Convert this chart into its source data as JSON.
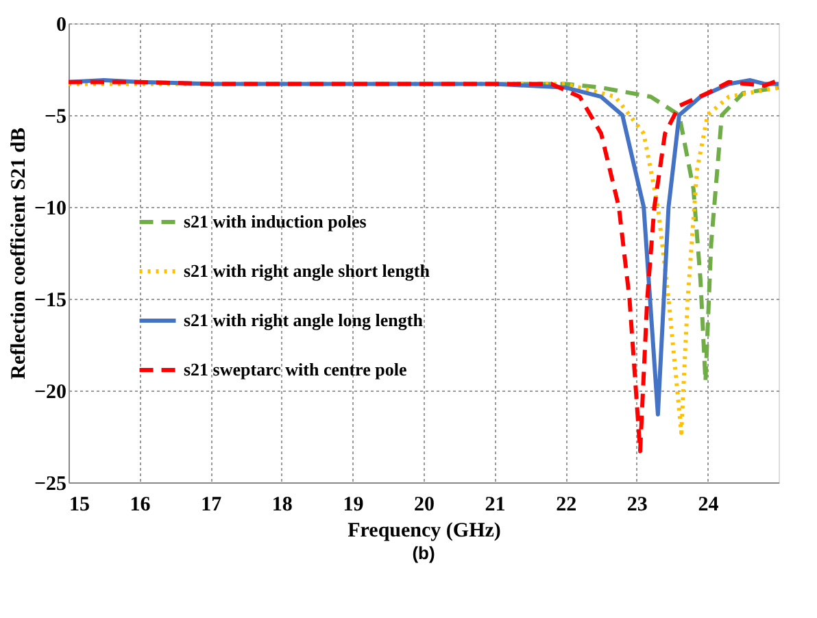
{
  "chart_data": {
    "type": "line",
    "xlabel": "Frequency (GHz)",
    "ylabel": "Reflection coefficient S21 dB",
    "xlim": [
      15,
      25
    ],
    "ylim": [
      -25,
      0
    ],
    "xticks": [
      15,
      16,
      17,
      18,
      19,
      20,
      21,
      22,
      23,
      24
    ],
    "yticks": [
      0,
      -5,
      -10,
      -15,
      -20,
      -25
    ],
    "grid": true,
    "legend": "left",
    "annotations": [
      "(b)"
    ],
    "series": [
      {
        "name": "s21 with induction poles",
        "color": "#70ad47",
        "line_style": "dashed",
        "x": [
          21,
          22,
          22.5,
          23.2,
          23.6,
          23.8,
          23.9,
          23.97,
          24.05,
          24.2,
          24.5,
          25
        ],
        "values": [
          -3.3,
          -3.3,
          -3.5,
          -4,
          -5,
          -9,
          -14,
          -19.5,
          -12,
          -5,
          -3.8,
          -3.5
        ]
      },
      {
        "name": "s21 with right angle short length",
        "color": "#ffc000",
        "line_style": "dotted",
        "x": [
          15,
          16,
          17,
          18,
          19,
          20,
          21,
          22,
          22.7,
          23.1,
          23.3,
          23.45,
          23.63,
          23.72,
          23.85,
          24,
          24.3,
          25
        ],
        "values": [
          -3.3,
          -3.3,
          -3.3,
          -3.3,
          -3.3,
          -3.3,
          -3.3,
          -3.3,
          -4,
          -6,
          -10,
          -15,
          -22.3,
          -15,
          -8,
          -5,
          -4,
          -3.5
        ]
      },
      {
        "name": "s21 with right angle long length",
        "color": "#4472c4",
        "line_style": "solid",
        "x": [
          15,
          15.5,
          16,
          17,
          18,
          19,
          20,
          21,
          22,
          22.5,
          22.8,
          23.1,
          23.3,
          23.45,
          23.6,
          23.9,
          24.3,
          24.6,
          24.8,
          25
        ],
        "values": [
          -3.2,
          -3.1,
          -3.2,
          -3.3,
          -3.3,
          -3.3,
          -3.3,
          -3.3,
          -3.5,
          -4,
          -5,
          -10,
          -21.3,
          -10,
          -5,
          -4,
          -3.3,
          -3.1,
          -3.3,
          -3.3
        ]
      },
      {
        "name": "s21 sweptarc with centre pole",
        "color": "#ff0000",
        "line_style": "dashed",
        "x": [
          15,
          16,
          17,
          18,
          19,
          20,
          21,
          21.8,
          22.2,
          22.5,
          22.75,
          22.9,
          23.05,
          23.15,
          23.25,
          23.4,
          23.6,
          24,
          24.3,
          24.8,
          25
        ],
        "values": [
          -3.2,
          -3.2,
          -3.3,
          -3.3,
          -3.3,
          -3.3,
          -3.3,
          -3.3,
          -4,
          -6,
          -10,
          -15,
          -23.3,
          -15,
          -10,
          -6,
          -4.5,
          -3.8,
          -3.2,
          -3.4,
          -3.1
        ]
      }
    ]
  }
}
